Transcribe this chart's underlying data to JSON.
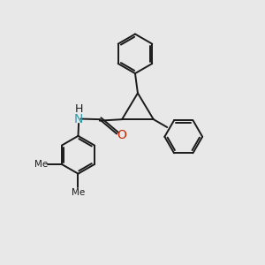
{
  "background_color": "#e8e8e8",
  "bond_color": "#1a1a1a",
  "n_color": "#3399aa",
  "o_color": "#cc2200",
  "lw": 1.4,
  "font_size": 9,
  "fig_size": [
    3.0,
    3.0
  ],
  "dpi": 100,
  "xlim": [
    0,
    10
  ],
  "ylim": [
    0,
    10
  ]
}
